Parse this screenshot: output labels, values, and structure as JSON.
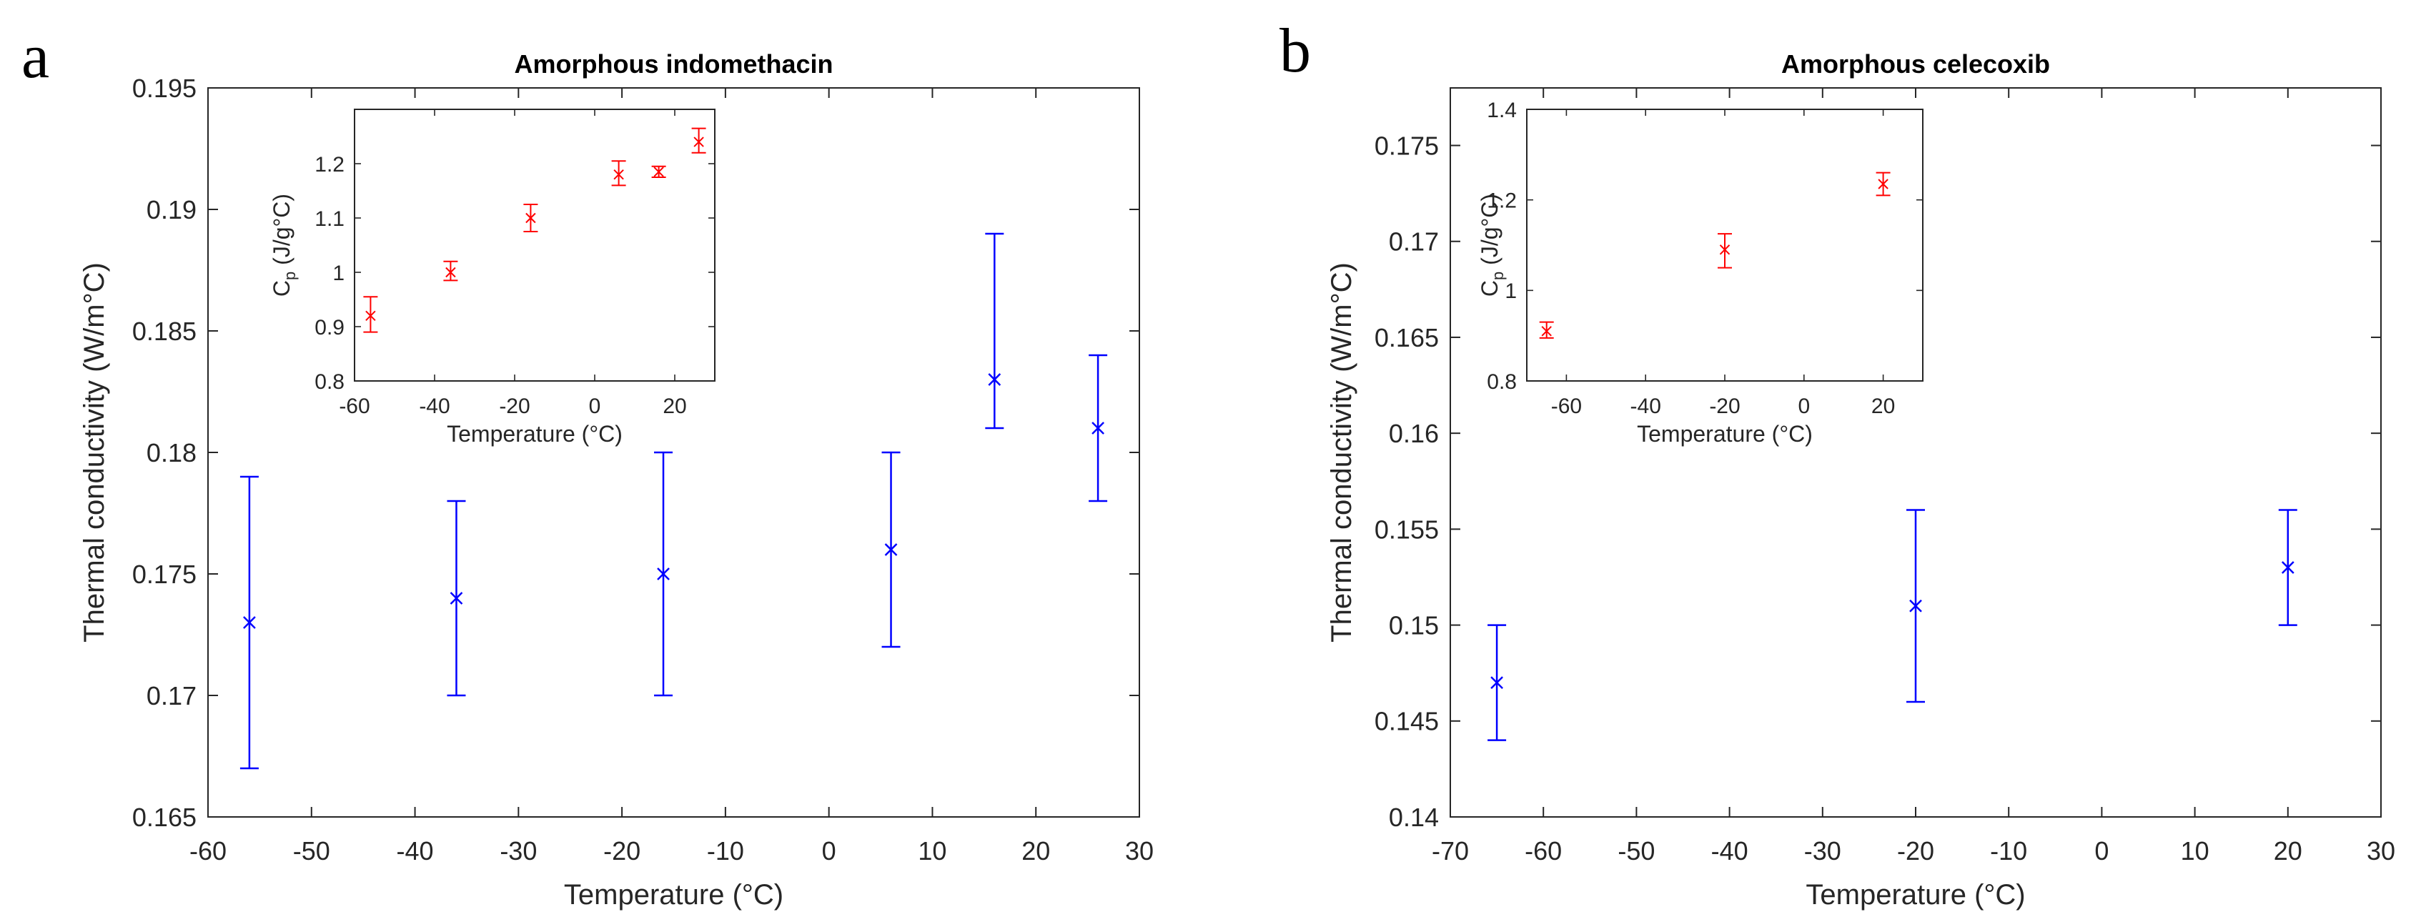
{
  "figure": {
    "panel_labels": [
      "a",
      "b"
    ]
  },
  "colors": {
    "main_series": "#0000ff",
    "inset_series": "#ff0000",
    "axes": "#262626"
  },
  "chart_data": [
    {
      "id": "a",
      "type": "scatter",
      "title": "Amorphous indomethacin",
      "xlabel": "Temperature (°C)",
      "ylabel": "Thermal conductivity (W/m°C)",
      "xlim": [
        -60,
        30
      ],
      "ylim": [
        0.165,
        0.195
      ],
      "xticks": [
        -60,
        -50,
        -40,
        -30,
        -20,
        -10,
        0,
        10,
        20,
        30
      ],
      "yticks": [
        0.165,
        0.17,
        0.175,
        0.18,
        0.185,
        0.19,
        0.195
      ],
      "xtick_labels": [
        "-60",
        "-50",
        "-40",
        "-30",
        "-20",
        "-10",
        "0",
        "10",
        "20",
        "30"
      ],
      "ytick_labels": [
        "0.165",
        "0.17",
        "0.175",
        "0.18",
        "0.185",
        "0.19",
        "0.195"
      ],
      "marker": "x",
      "grid": false,
      "points": [
        {
          "x": -56,
          "y": 0.173,
          "low": 0.167,
          "high": 0.179
        },
        {
          "x": -36,
          "y": 0.174,
          "low": 0.17,
          "high": 0.178
        },
        {
          "x": -16,
          "y": 0.175,
          "low": 0.17,
          "high": 0.18
        },
        {
          "x": 6,
          "y": 0.176,
          "low": 0.172,
          "high": 0.18
        },
        {
          "x": 16,
          "y": 0.183,
          "low": 0.181,
          "high": 0.189
        },
        {
          "x": 26,
          "y": 0.181,
          "low": 0.178,
          "high": 0.184
        }
      ],
      "inset": {
        "xlabel": "Temperature (°C)",
        "ylabel": "C",
        "ylabel_sub": "p",
        "ylabel_unit": " (J/g°C)",
        "xlim": [
          -60,
          30
        ],
        "ylim": [
          0.8,
          1.3
        ],
        "xticks": [
          -60,
          -40,
          -20,
          0,
          20
        ],
        "yticks": [
          0.8,
          0.9,
          1.0,
          1.1,
          1.2
        ],
        "xtick_labels": [
          "-60",
          "-40",
          "-20",
          "0",
          "20"
        ],
        "ytick_labels": [
          "0.8",
          "0.9",
          "1",
          "1.1",
          "1.2"
        ],
        "marker": "x",
        "points": [
          {
            "x": -56,
            "y": 0.92,
            "low": 0.89,
            "high": 0.955
          },
          {
            "x": -36,
            "y": 1.0,
            "low": 0.985,
            "high": 1.02
          },
          {
            "x": -16,
            "y": 1.1,
            "low": 1.075,
            "high": 1.125
          },
          {
            "x": 6,
            "y": 1.18,
            "low": 1.16,
            "high": 1.205
          },
          {
            "x": 16,
            "y": 1.185,
            "low": 1.175,
            "high": 1.195
          },
          {
            "x": 26,
            "y": 1.24,
            "low": 1.22,
            "high": 1.265
          }
        ]
      }
    },
    {
      "id": "b",
      "type": "scatter",
      "title": "Amorphous celecoxib",
      "xlabel": "Temperature (°C)",
      "ylabel": "Thermal conductivity (W/m°C)",
      "xlim": [
        -70,
        30
      ],
      "ylim": [
        0.14,
        0.178
      ],
      "xticks": [
        -70,
        -60,
        -50,
        -40,
        -30,
        -20,
        -10,
        0,
        10,
        20,
        30
      ],
      "yticks": [
        0.14,
        0.145,
        0.15,
        0.155,
        0.16,
        0.165,
        0.17,
        0.175
      ],
      "xtick_labels": [
        "-70",
        "-60",
        "-50",
        "-40",
        "-30",
        "-20",
        "-10",
        "0",
        "10",
        "20",
        "30"
      ],
      "ytick_labels": [
        "0.14",
        "0.145",
        "0.15",
        "0.155",
        "0.16",
        "0.165",
        "0.17",
        "0.175"
      ],
      "marker": "x",
      "grid": false,
      "points": [
        {
          "x": -65,
          "y": 0.147,
          "low": 0.144,
          "high": 0.15
        },
        {
          "x": -20,
          "y": 0.151,
          "low": 0.146,
          "high": 0.156
        },
        {
          "x": 20,
          "y": 0.153,
          "low": 0.15,
          "high": 0.156
        }
      ],
      "inset": {
        "xlabel": "Temperature (°C)",
        "ylabel": "C",
        "ylabel_sub": "p",
        "ylabel_unit": " (J/g°C)",
        "xlim": [
          -70,
          30
        ],
        "ylim": [
          0.8,
          1.4
        ],
        "xticks": [
          -60,
          -40,
          -20,
          0,
          20
        ],
        "yticks": [
          0.8,
          1.0,
          1.2,
          1.4
        ],
        "xtick_labels": [
          "-60",
          "-40",
          "-20",
          "0",
          "20"
        ],
        "ytick_labels": [
          "0.8",
          "1",
          "1.2",
          "1.4"
        ],
        "marker": "x",
        "points": [
          {
            "x": -65,
            "y": 0.91,
            "low": 0.895,
            "high": 0.93
          },
          {
            "x": -20,
            "y": 1.09,
            "low": 1.05,
            "high": 1.125
          },
          {
            "x": 20,
            "y": 1.235,
            "low": 1.21,
            "high": 1.26
          }
        ]
      }
    }
  ]
}
